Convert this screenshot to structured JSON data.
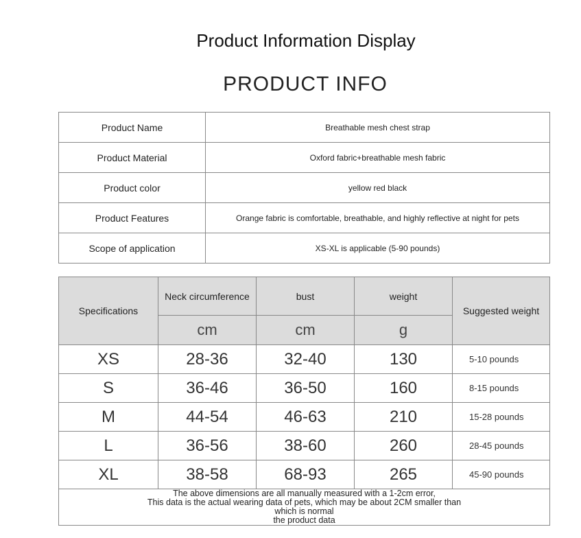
{
  "title": "Product Information Display",
  "subtitle": "PRODUCT INFO",
  "info": [
    {
      "label": "Product Name",
      "value": "Breathable mesh chest strap"
    },
    {
      "label": "Product Material",
      "value": "Oxford fabric+breathable mesh fabric"
    },
    {
      "label": "Product color",
      "value": "yellow      red      black"
    },
    {
      "label": "Product Features",
      "value": "Orange fabric is comfortable, breathable, and highly reflective at night for pets"
    },
    {
      "label": "Scope of application",
      "value": "XS-XL is applicable      (5-90 pounds)"
    }
  ],
  "size_table": {
    "headers": {
      "spec": "Specifications",
      "neck": "Neck circumference",
      "bust": "bust",
      "weight": "weight",
      "suggested": "Suggested weight"
    },
    "units": {
      "neck": "cm",
      "bust": "cm",
      "weight": "g"
    },
    "rows": [
      {
        "size": "XS",
        "neck": "28-36",
        "bust": "32-40",
        "weight": "130",
        "suggested": "5-10 pounds"
      },
      {
        "size": "S",
        "neck": "36-46",
        "bust": "36-50",
        "weight": "160",
        "suggested": "8-15 pounds"
      },
      {
        "size": "M",
        "neck": "44-54",
        "bust": "46-63",
        "weight": "210",
        "suggested": "15-28 pounds"
      },
      {
        "size": "L",
        "neck": "36-56",
        "bust": "38-60",
        "weight": "260",
        "suggested": "28-45 pounds"
      },
      {
        "size": "XL",
        "neck": "38-58",
        "bust": "68-93",
        "weight": "265",
        "suggested": "45-90 pounds"
      }
    ],
    "note": [
      "The above dimensions are all manually measured with a 1-2cm error,",
      "This data is the actual wearing data of pets, which may be about 2CM smaller than",
      "which is normal",
      "the product data"
    ]
  }
}
